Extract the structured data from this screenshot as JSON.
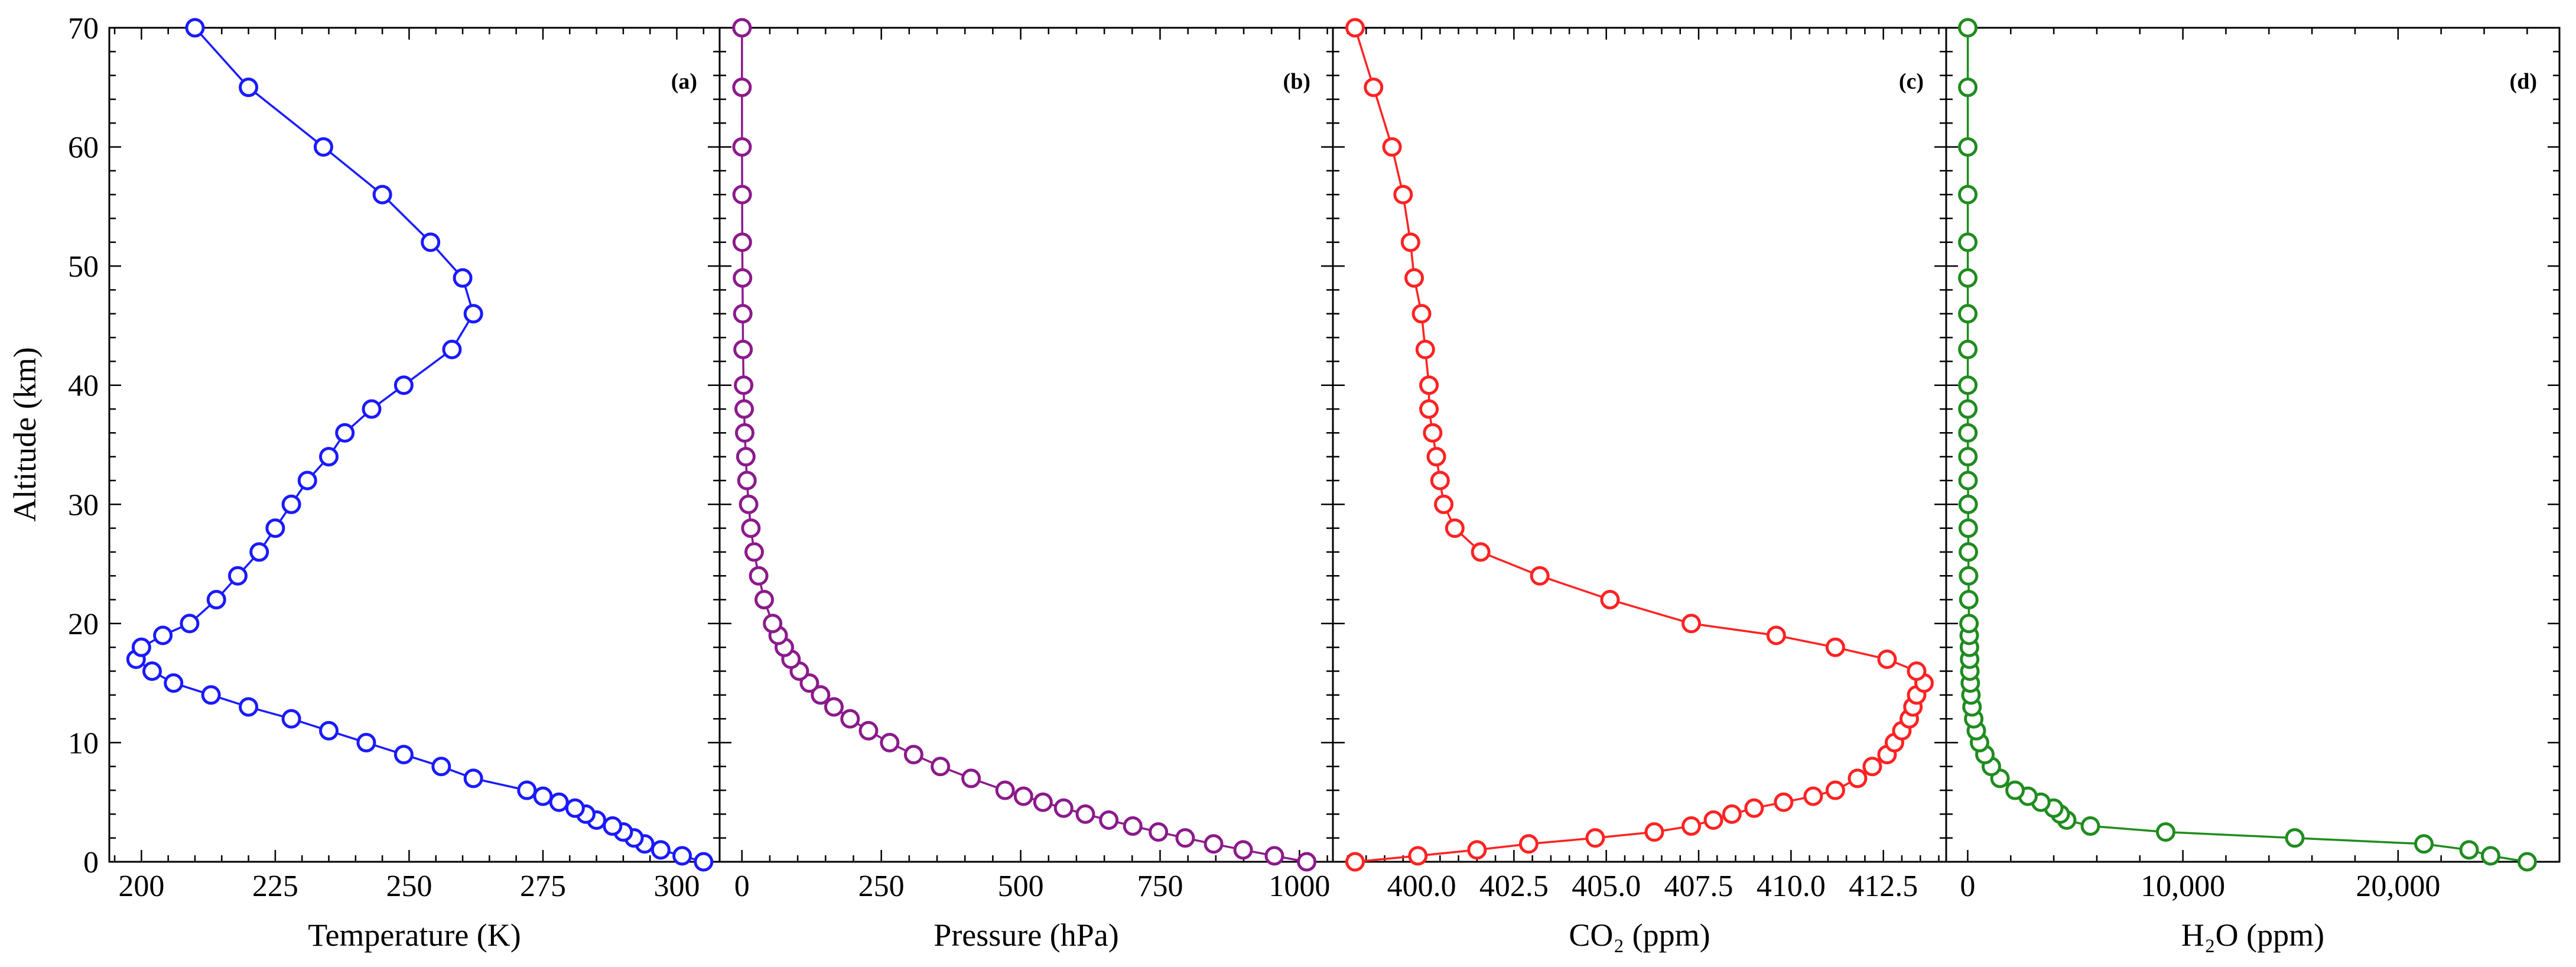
{
  "colors": {
    "temperature": "#1a1aff",
    "pressure": "#8b1a8b",
    "co2": "#ff2222",
    "h2o": "#1f8c1f"
  },
  "shared_y": {
    "label": "Altitude (km)",
    "ylim": [
      0,
      70
    ],
    "ticks": [
      0,
      10,
      20,
      30,
      40,
      50,
      60,
      70
    ],
    "tick_labels": [
      "0",
      "10",
      "20",
      "30",
      "40",
      "50",
      "60",
      "70"
    ]
  },
  "chart_data": [
    {
      "type": "line",
      "panel": "(a)",
      "xlabel": "Temperature (K)",
      "ylabel": "Altitude (km)",
      "xlim": [
        194,
        308
      ],
      "ylim": [
        0,
        70
      ],
      "color_key": "temperature",
      "xticks": [
        200,
        225,
        250,
        275,
        300
      ],
      "xtick_labels": [
        "200",
        "225",
        "250",
        "275",
        "300"
      ],
      "altitude": [
        0,
        0.5,
        1,
        1.5,
        2,
        2.5,
        3,
        3.5,
        4,
        4.5,
        5,
        5.5,
        6,
        7,
        8,
        9,
        10,
        11,
        12,
        13,
        14,
        15,
        16,
        17,
        18,
        19,
        20,
        22,
        24,
        26,
        28,
        30,
        32,
        34,
        36,
        38,
        40,
        43,
        46,
        49,
        52,
        56,
        60,
        65,
        70
      ],
      "x": [
        305,
        301,
        297,
        294,
        292,
        290,
        288,
        285,
        283,
        281,
        278,
        275,
        272,
        262,
        256,
        249,
        242,
        235,
        228,
        220,
        213,
        206,
        202,
        199,
        200,
        204,
        209,
        214,
        218,
        222,
        225,
        228,
        231,
        235,
        238,
        243,
        249,
        258,
        262,
        260,
        254,
        245,
        234,
        220,
        210
      ]
    },
    {
      "type": "line",
      "panel": "(b)",
      "xlabel": "Pressure (hPa)",
      "ylabel": "Altitude (km)",
      "xlim": [
        -40,
        1060
      ],
      "ylim": [
        0,
        70
      ],
      "color_key": "pressure",
      "xticks": [
        0,
        250,
        500,
        750,
        1000
      ],
      "xtick_labels": [
        "0",
        "250",
        "500",
        "750",
        "1000"
      ],
      "altitude": [
        0,
        0.5,
        1,
        1.5,
        2,
        2.5,
        3,
        3.5,
        4,
        4.5,
        5,
        5.5,
        6,
        7,
        8,
        9,
        10,
        11,
        12,
        13,
        14,
        15,
        16,
        17,
        18,
        19,
        20,
        22,
        24,
        26,
        28,
        30,
        32,
        34,
        36,
        38,
        40,
        43,
        46,
        49,
        52,
        56,
        60,
        65,
        70
      ],
      "x": [
        1013,
        955,
        899,
        846,
        795,
        747,
        701,
        658,
        616,
        577,
        540,
        505,
        472,
        411,
        356,
        308,
        265,
        227,
        194,
        165,
        141,
        121,
        103,
        88,
        76,
        65,
        55,
        40,
        30,
        22,
        16,
        12,
        9,
        7,
        5,
        4,
        3,
        2,
        1.5,
        1,
        0.6,
        0.4,
        0.2,
        0.1,
        0.05
      ]
    },
    {
      "type": "line",
      "panel": "(c)",
      "xlabel": "CO₂ (ppm)",
      "ylabel": "Altitude (km)",
      "xlim": [
        397.6,
        414.2
      ],
      "ylim": [
        0,
        70
      ],
      "color_key": "co2",
      "xticks": [
        400.0,
        402.5,
        405.0,
        407.5,
        410.0,
        412.5
      ],
      "xtick_labels": [
        "400.0",
        "402.5",
        "405.0",
        "407.5",
        "410.0",
        "412.5"
      ],
      "altitude": [
        0,
        0.5,
        1,
        1.5,
        2,
        2.5,
        3,
        3.5,
        4,
        4.5,
        5,
        5.5,
        6,
        7,
        8,
        9,
        10,
        11,
        12,
        13,
        14,
        15,
        16,
        17,
        18,
        19,
        20,
        22,
        24,
        26,
        28,
        30,
        32,
        34,
        36,
        38,
        40,
        43,
        46,
        49,
        52,
        56,
        60,
        65,
        70
      ],
      "x": [
        398.2,
        399.9,
        401.5,
        402.9,
        404.7,
        406.3,
        407.3,
        407.9,
        408.4,
        409.0,
        409.8,
        410.6,
        411.2,
        411.8,
        412.2,
        412.6,
        412.8,
        413.0,
        413.2,
        413.3,
        413.4,
        413.6,
        413.4,
        412.6,
        411.2,
        409.6,
        407.3,
        405.1,
        403.2,
        401.6,
        400.9,
        400.6,
        400.5,
        400.4,
        400.3,
        400.2,
        400.2,
        400.1,
        400.0,
        399.8,
        399.7,
        399.5,
        399.2,
        398.7,
        398.2
      ]
    },
    {
      "type": "line",
      "panel": "(d)",
      "xlabel": "H₂O (ppm)",
      "ylabel": "Altitude (km)",
      "xlim": [
        -1000,
        27500
      ],
      "ylim": [
        0,
        70
      ],
      "color_key": "h2o",
      "xticks": [
        0,
        10000,
        20000
      ],
      "xtick_labels": [
        "0",
        "10,000",
        "20,000"
      ],
      "altitude": [
        0,
        0.5,
        1,
        1.5,
        2,
        2.5,
        3,
        3.5,
        4,
        4.5,
        5,
        5.5,
        6,
        7,
        8,
        9,
        10,
        11,
        12,
        13,
        14,
        15,
        16,
        17,
        18,
        19,
        20,
        22,
        24,
        26,
        28,
        30,
        32,
        34,
        36,
        38,
        40,
        43,
        46,
        49,
        52,
        56,
        60,
        65,
        70
      ],
      "x": [
        26000,
        24300,
        23300,
        21200,
        15200,
        9200,
        5700,
        4600,
        4300,
        4000,
        3400,
        2800,
        2200,
        1500,
        1100,
        800,
        550,
        400,
        280,
        200,
        150,
        120,
        100,
        90,
        80,
        70,
        60,
        50,
        40,
        30,
        25,
        20,
        15,
        10,
        8,
        6,
        5,
        5,
        4,
        4,
        4,
        4,
        4,
        4,
        4
      ]
    }
  ]
}
